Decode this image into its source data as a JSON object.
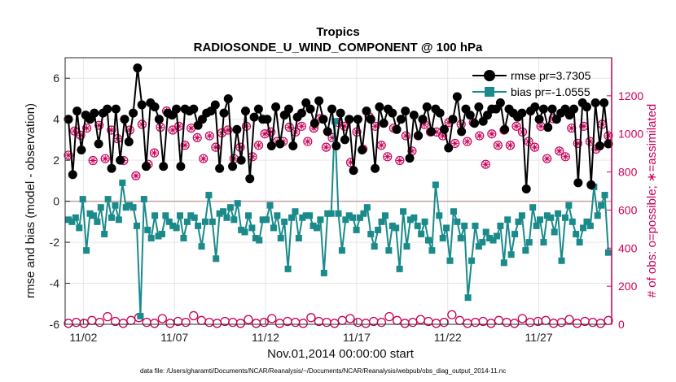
{
  "chart_data": {
    "type": "line",
    "title": "Tropics",
    "subtitle": "RADIOSONDE_U_WIND_COMPONENT @ 100 hPa",
    "xlabel": "Nov.01,2014 00:00:00 start",
    "ylabel": "rmse and bias (model - observation)",
    "ylabel_right": "# of obs: o=possible; ∗=assimilated",
    "footnote": "data file: /Users/gharamti/Documents/NCAR/Reanalysis/~/Documents/NCAR/Reanalysis/webpub/obs_diag_output_2014-11.nc",
    "x_ticks": [
      {
        "day": 2,
        "label": "11/02"
      },
      {
        "day": 7,
        "label": "11/07"
      },
      {
        "day": 12,
        "label": "11/12"
      },
      {
        "day": 17,
        "label": "11/17"
      },
      {
        "day": 22,
        "label": "11/22"
      },
      {
        "day": 27,
        "label": "11/27"
      }
    ],
    "xlim": [
      1,
      31
    ],
    "ylim": [
      -6,
      7
    ],
    "yticks": [
      -6,
      -4,
      -2,
      0,
      2,
      4,
      6
    ],
    "ylim_right": [
      0,
      1400
    ],
    "yticks_right": [
      0,
      200,
      400,
      600,
      800,
      1000,
      1200
    ],
    "grid": true,
    "legend": {
      "position": "top-right",
      "entries": [
        "rmse pr=3.7305",
        "bias pr=-1.0555"
      ]
    },
    "colors": {
      "rmse": "#000000",
      "bias": "#1a8a8a",
      "obs": "#c8005a",
      "zero_line": "#c8a0a0",
      "grid": "#e6e6e6"
    },
    "series": [
      {
        "name": "rmse",
        "axis": "left",
        "values": [
          4.0,
          1.3,
          4.4,
          2.5,
          4.2,
          4.0,
          4.3,
          2.8,
          4.3,
          4.5,
          1.6,
          4.5,
          2.0,
          4.0,
          2.9,
          4.3,
          6.5,
          4.7,
          1.7,
          4.8,
          4.6,
          4.0,
          1.7,
          4.3,
          4.2,
          4.5,
          1.7,
          4.5,
          4.4,
          4.5,
          3.7,
          4.0,
          4.3,
          4.4,
          4.7,
          1.6,
          4.3,
          5.0,
          1.7,
          3.5,
          2.0,
          4.4,
          1.1,
          4.1,
          4.5,
          4.0,
          4.0,
          2.7,
          4.6,
          2.8,
          4.2,
          4.5,
          2.7,
          4.1,
          4.3,
          4.8,
          4.5,
          3.8,
          4.9,
          4.0,
          3.4,
          4.5,
          2.7,
          4.3,
          3.0,
          4.0,
          1.5,
          4.0,
          2.5,
          4.4,
          4.0,
          1.6,
          4.6,
          3.8,
          4.5,
          4.3,
          3.5,
          4.0,
          4.4,
          2.1,
          4.2,
          3.2,
          4.0,
          4.6,
          3.4,
          4.5,
          4.3,
          3.5,
          2.6,
          4.0,
          5.1,
          3.4,
          4.5,
          4.2,
          3.8,
          4.6,
          3.9,
          4.2,
          4.5,
          4.5,
          4.8,
          3.5,
          4.5,
          4.3,
          4.1,
          4.3,
          0.6,
          4.4,
          4.6,
          4.0,
          4.5,
          3.6,
          4.5,
          4.0,
          4.3,
          4.5,
          4.2,
          4.5,
          0.9,
          4.8,
          4.6,
          0.8,
          4.8,
          2.7,
          4.8,
          2.8
        ]
      },
      {
        "name": "bias",
        "axis": "left",
        "values": [
          -0.9,
          -1.0,
          -0.8,
          -1.3,
          0.1,
          -2.4,
          -0.6,
          -0.7,
          -1.0,
          -0.3,
          -1.6,
          0.1,
          -0.8,
          -0.2,
          -0.9,
          0.9,
          -0.3,
          -0.2,
          -0.3,
          -1.2,
          -5.6,
          0.1,
          -1.4,
          -1.8,
          -0.7,
          -1.7,
          -1.6,
          -0.7,
          -1.0,
          -1.2,
          -1.3,
          -0.7,
          -1.8,
          -1.0,
          -0.7,
          -0.8,
          -1.2,
          -2.2,
          -1.0,
          0.3,
          -1.0,
          -2.8,
          -0.6,
          -0.5,
          -0.8,
          -0.3,
          -0.9,
          -0.1,
          -1.4,
          -1.5,
          -0.7,
          -1.3,
          -1.8,
          -1.9,
          -0.9,
          -0.9,
          -0.2,
          -1.3,
          -0.7,
          -1.8,
          -1.0,
          -3.3,
          -0.8,
          -0.5,
          -1.8,
          -0.8,
          -0.7,
          -0.7,
          -1.2,
          -1.3,
          -0.9,
          -3.5,
          -0.6,
          -0.6,
          3.9,
          -0.6,
          -2.4,
          -0.9,
          -0.7,
          -0.8,
          -1.4,
          -0.8,
          -0.6,
          -0.3,
          -1.6,
          -2.2,
          -1.4,
          -1.0,
          -0.7,
          -2.4,
          -1.2,
          -1.3,
          -3.3,
          -0.5,
          -2.2,
          -0.9,
          -0.8,
          -1.2,
          -1.6,
          -1.0,
          -1.9,
          -2.4,
          0.8,
          -0.7,
          -1.8,
          -1.3,
          -2.9,
          -0.5,
          -1.0,
          -1.8,
          -1.2,
          -4.7,
          -2.9,
          -1.2,
          -2.2,
          -2.0,
          -1.5,
          -1.8,
          -1.9,
          -1.7,
          -1.2,
          -3.0,
          -0.9,
          -2.6,
          -1.6,
          -1.0,
          -0.7,
          -2.4,
          -2.0,
          -0.3,
          -1.2,
          -0.9,
          -2.0,
          -0.7,
          -0.8,
          -1.5,
          -0.6,
          -2.9,
          -0.8,
          -0.2,
          -1.0,
          -1.6,
          -2.0,
          -1.3,
          -1.0,
          -1.2,
          0.7,
          -0.7,
          -0.2,
          0.3,
          -2.5
        ]
      },
      {
        "name": "obs_assimilated",
        "axis": "right",
        "values": [
          888,
          1015,
          993,
          1030,
          860,
          1045,
          870,
          1020,
          975,
          860,
          1020,
          780,
          1050,
          840,
          900,
          1035,
          1120,
          1020,
          1040,
          940,
          1030,
          980,
          870,
          990,
          930,
          1005,
          1020,
          870,
          930,
          1040,
          880,
          940,
          1000,
          1010,
          960,
          960,
          1035,
          1010,
          1040,
          960,
          1030,
          1080,
          930,
          980,
          1060,
          1040,
          850,
          1010,
          920,
          1090,
          1040,
          940,
          880,
          1030,
          860,
          990,
          910,
          990,
          1050,
          1010,
          1010,
          990,
          1060,
          950,
          1050,
          960,
          1060,
          990,
          840,
          1000,
          940,
          1020,
          940,
          1040,
          1010,
          960,
          930,
          1040,
          870,
          1080,
          910,
          880,
          1030,
          950,
          1040,
          960,
          920,
          1050,
          990
        ]
      },
      {
        "name": "obs_possible",
        "axis": "right",
        "values": [
          5,
          10,
          5,
          20,
          10,
          40,
          15,
          5,
          20,
          35,
          10,
          5,
          30,
          5,
          15,
          10,
          45,
          20,
          10,
          5,
          15,
          10,
          5,
          25,
          5,
          10,
          30,
          5,
          15,
          10,
          5,
          35,
          15,
          10,
          5,
          20,
          30,
          10,
          5,
          15,
          10,
          40,
          20,
          5,
          10,
          25,
          15,
          5,
          10,
          50,
          20,
          5,
          10,
          15,
          5,
          20,
          10,
          5,
          30,
          10,
          15,
          20,
          5,
          10,
          25,
          5,
          15,
          10,
          5,
          20
        ]
      }
    ]
  }
}
